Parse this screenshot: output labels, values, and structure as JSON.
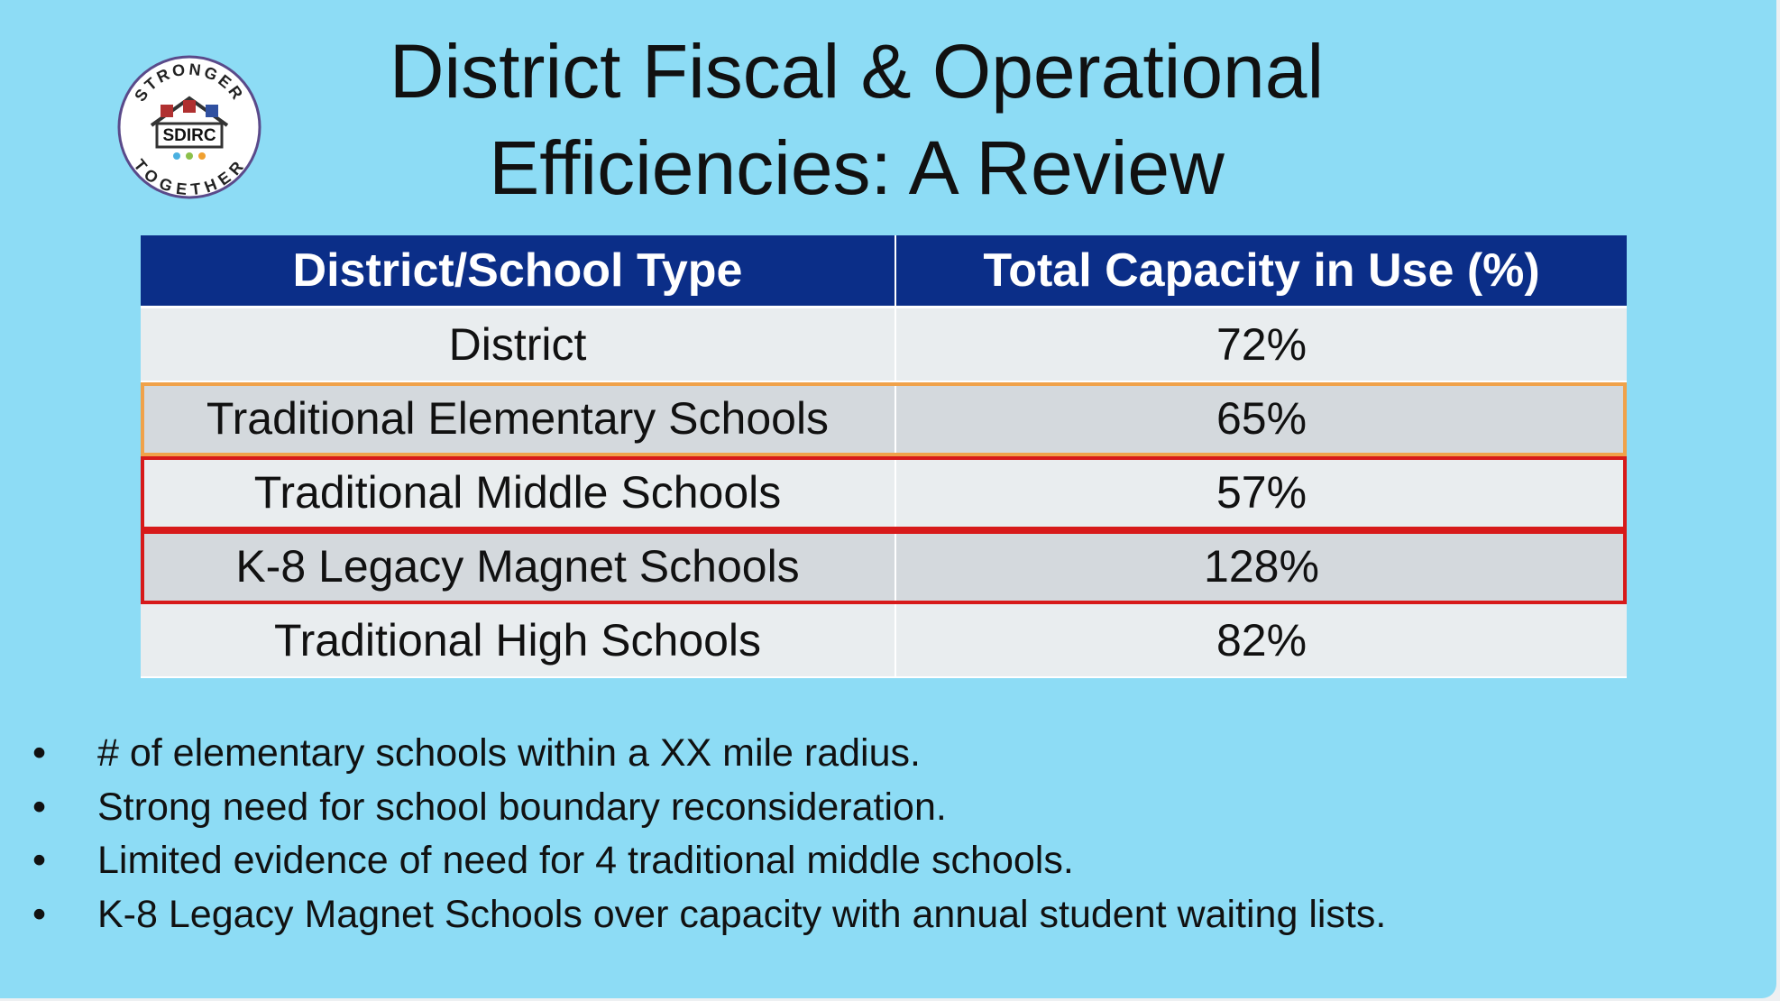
{
  "logo": {
    "top_text": "STRONGER",
    "center_text": "SDIRC",
    "bottom_text": "TOGETHER"
  },
  "header": {
    "title": "District Fiscal & Operational Efficiencies: A Review"
  },
  "table": {
    "columns": [
      "District/School Type",
      "Total Capacity in Use (%)"
    ],
    "rows": [
      [
        "District",
        "72%"
      ],
      [
        "Traditional Elementary Schools",
        "65%"
      ],
      [
        "Traditional Middle Schools",
        "57%"
      ],
      [
        "K-8 Legacy Magnet Schools",
        "128%"
      ],
      [
        "Traditional High Schools",
        "82%"
      ]
    ]
  },
  "bullets": [
    "# of elementary schools within a XX mile radius.",
    "Strong need for school boundary reconsideration.",
    "Limited evidence of need for 4 traditional middle schools.",
    "K-8 Legacy Magnet Schools over capacity with annual student waiting lists."
  ]
}
